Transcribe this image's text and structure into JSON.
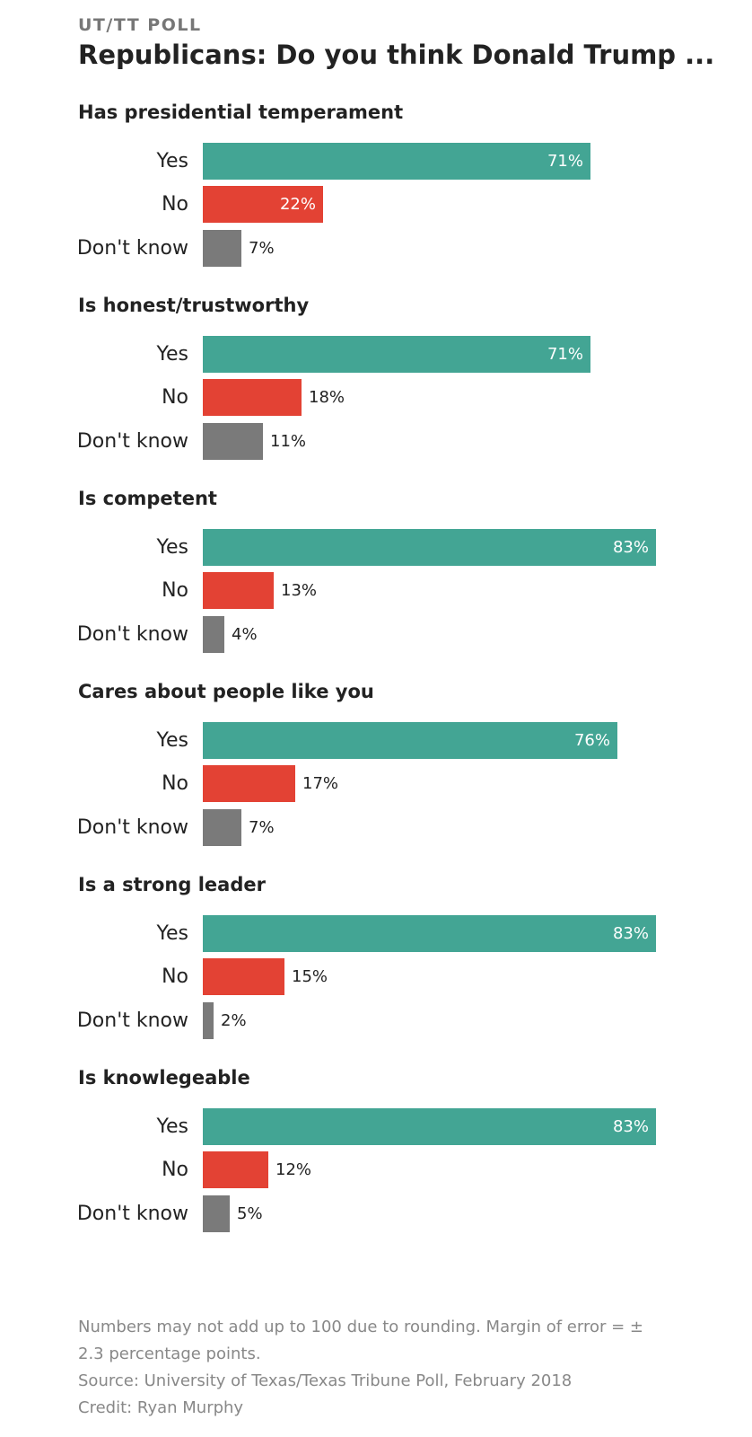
{
  "header": {
    "kicker": "UT/TT POLL",
    "title": "Republicans: Do you think Donald Trump ..."
  },
  "colors": {
    "yes": "#43a594",
    "no": "#e34234",
    "dont_know": "#7a7a7a",
    "inside_label": "#ffffff",
    "outside_label": "#222222"
  },
  "chart_data": {
    "type": "bar",
    "orientation": "horizontal",
    "title": "Republicans: Do you think Donald Trump ...",
    "unit": "%",
    "xlim": [
      0,
      83
    ],
    "grid": false,
    "categories": [
      "Yes",
      "No",
      "Don't know"
    ],
    "groups": [
      {
        "title": "Has presidential temperament",
        "labels": [
          "Yes",
          "No",
          "Don't know"
        ],
        "values": [
          71,
          22,
          7
        ],
        "value_labels": [
          "71%",
          "22%",
          "7%"
        ]
      },
      {
        "title": "Is honest/trustworthy",
        "labels": [
          "Yes",
          "No",
          "Don't know"
        ],
        "values": [
          71,
          18,
          11
        ],
        "value_labels": [
          "71%",
          "18%",
          "11%"
        ]
      },
      {
        "title": "Is competent",
        "labels": [
          "Yes",
          "No",
          "Don't know"
        ],
        "values": [
          83,
          13,
          4
        ],
        "value_labels": [
          "83%",
          "13%",
          "4%"
        ]
      },
      {
        "title": "Cares about people like you",
        "labels": [
          "Yes",
          "No",
          "Don't know"
        ],
        "values": [
          76,
          17,
          7
        ],
        "value_labels": [
          "76%",
          "17%",
          "7%"
        ]
      },
      {
        "title": "Is a strong leader",
        "labels": [
          "Yes",
          "No",
          "Don't know"
        ],
        "values": [
          83,
          15,
          2
        ],
        "value_labels": [
          "83%",
          "15%",
          "2%"
        ]
      },
      {
        "title": "Is knowlegeable",
        "labels": [
          "Yes",
          "No",
          "Don't know"
        ],
        "values": [
          83,
          12,
          5
        ],
        "value_labels": [
          "83%",
          "12%",
          "5%"
        ]
      }
    ]
  },
  "footer": {
    "note": "Numbers may not add up to 100 due to rounding. Margin of error = ± 2.3 percentage points.",
    "source": "Source: University of Texas/Texas Tribune Poll, February 2018",
    "credit": "Credit: Ryan Murphy"
  }
}
